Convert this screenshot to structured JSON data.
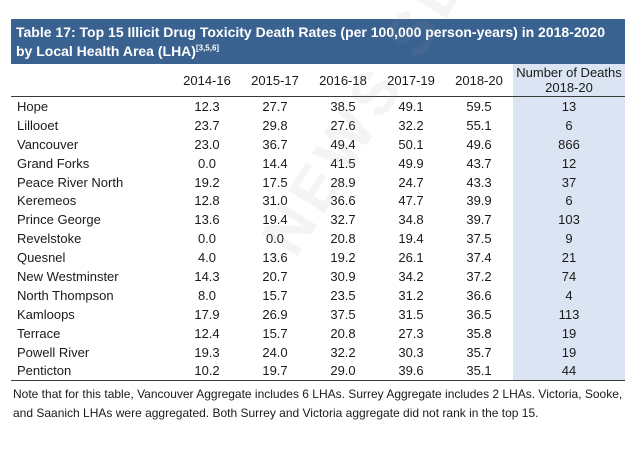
{
  "title": {
    "text": "Table 17: Top 15 Illicit Drug Toxicity Death Rates (per 100,000 person-years) in 2018-2020 by Local Health Area (LHA)",
    "superscript": "[3,5,6]"
  },
  "headers": [
    "",
    "2014-16",
    "2015-17",
    "2016-18",
    "2017-19",
    "2018-20",
    "Number of Deaths 2018-20"
  ],
  "rows": [
    [
      "Hope",
      "12.3",
      "27.7",
      "38.5",
      "49.1",
      "59.5",
      "13"
    ],
    [
      "Lillooet",
      "23.7",
      "29.8",
      "27.6",
      "32.2",
      "55.1",
      "6"
    ],
    [
      "Vancouver",
      "23.0",
      "36.7",
      "49.4",
      "50.1",
      "49.6",
      "866"
    ],
    [
      "Grand Forks",
      "0.0",
      "14.4",
      "41.5",
      "49.9",
      "43.7",
      "12"
    ],
    [
      "Peace River North",
      "19.2",
      "17.5",
      "28.9",
      "24.7",
      "43.3",
      "37"
    ],
    [
      "Keremeos",
      "12.8",
      "31.0",
      "36.6",
      "47.7",
      "39.9",
      "6"
    ],
    [
      "Prince George",
      "13.6",
      "19.4",
      "32.7",
      "34.8",
      "39.7",
      "103"
    ],
    [
      "Revelstoke",
      "0.0",
      "0.0",
      "20.8",
      "19.4",
      "37.5",
      "9"
    ],
    [
      "Quesnel",
      "4.0",
      "13.6",
      "19.2",
      "26.1",
      "37.4",
      "21"
    ],
    [
      "New Westminster",
      "14.3",
      "20.7",
      "30.9",
      "34.2",
      "37.2",
      "74"
    ],
    [
      "North Thompson",
      "8.0",
      "15.7",
      "23.5",
      "31.2",
      "36.6",
      "4"
    ],
    [
      "Kamloops",
      "17.9",
      "26.9",
      "37.5",
      "31.5",
      "36.5",
      "113"
    ],
    [
      "Terrace",
      "12.4",
      "15.7",
      "20.8",
      "27.3",
      "35.8",
      "19"
    ],
    [
      "Powell River",
      "19.3",
      "24.0",
      "32.2",
      "30.3",
      "35.7",
      "19"
    ],
    [
      "Penticton",
      "10.2",
      "19.7",
      "29.0",
      "39.6",
      "35.1",
      "44"
    ]
  ],
  "note": "Note that for this table, Vancouver Aggregate includes 6 LHAs. Surrey Aggregate includes 2 LHAs. Victoria, Sooke, and Saanich LHAs were aggregated. Both Surrey and Victoria aggregate did not rank in the top 15.",
  "colors": {
    "title_bg": "#3a6290",
    "count_col_bg": "#dbe4f2"
  }
}
